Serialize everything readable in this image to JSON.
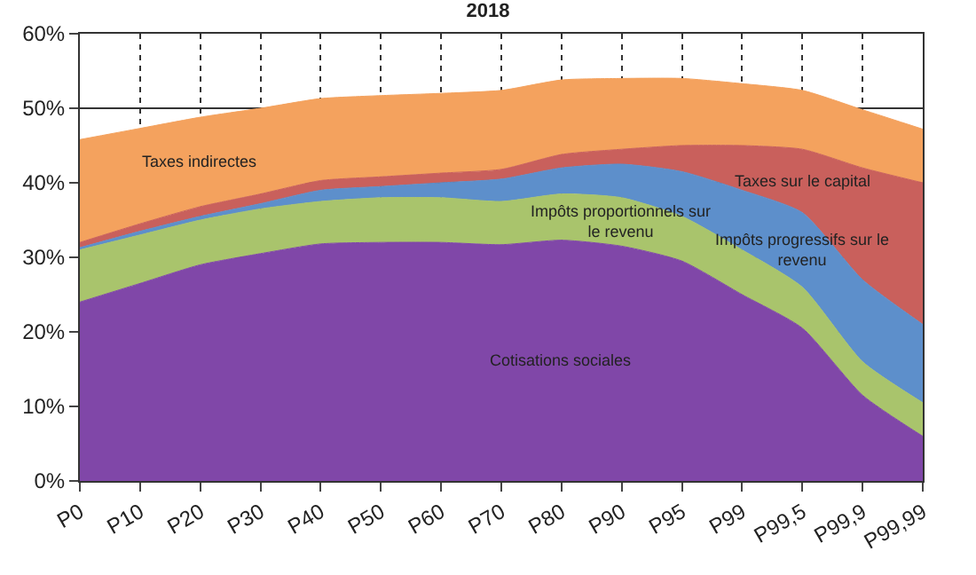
{
  "chart_data": {
    "type": "area",
    "title": "2018",
    "stacked": true,
    "categories": [
      "P0",
      "P10",
      "P20",
      "P30",
      "P40",
      "P50",
      "P60",
      "P70",
      "P80",
      "P90",
      "P95",
      "P99",
      "P99,5",
      "P99,9",
      "P99,99"
    ],
    "series": [
      {
        "name": "Cotisations sociales",
        "color": "#8047a8",
        "values": [
          24,
          26.5,
          29,
          30.5,
          31.8,
          32,
          32,
          31.7,
          32.3,
          31.5,
          29.5,
          25,
          20.5,
          11.5,
          6
        ]
      },
      {
        "name": "Impôts proportionnels sur le revenu",
        "color": "#a9c46c",
        "values": [
          7,
          6.5,
          6,
          6,
          5.7,
          6,
          6,
          5.8,
          6.2,
          6.5,
          6,
          6,
          5.5,
          4.5,
          4.5
        ]
      },
      {
        "name": "Impôts progressifs sur le revenu",
        "color": "#5d8fcb",
        "values": [
          0.3,
          0.5,
          0.5,
          0.7,
          1.5,
          1.5,
          2,
          3,
          3.5,
          4.5,
          6,
          8,
          10,
          11,
          10.5
        ]
      },
      {
        "name": "Taxes sur le capital",
        "color": "#c9605c",
        "values": [
          0.7,
          1,
          1.3,
          1.3,
          1.3,
          1.3,
          1.3,
          1.3,
          1.8,
          2,
          3.5,
          6,
          8.5,
          15,
          19
        ]
      },
      {
        "name": "Taxes indirectes",
        "color": "#f4a25e",
        "values": [
          13.8,
          12.8,
          12,
          11.5,
          11,
          10.9,
          10.7,
          10.6,
          10,
          9.5,
          9,
          8.3,
          7.9,
          7.8,
          7.2
        ]
      }
    ],
    "ylim": [
      0,
      60
    ],
    "yticks": [
      {
        "value": 0,
        "label": "0%"
      },
      {
        "value": 10,
        "label": "10%"
      },
      {
        "value": 20,
        "label": "20%"
      },
      {
        "value": 30,
        "label": "30%"
      },
      {
        "value": 40,
        "label": "40%"
      },
      {
        "value": 50,
        "label": "50%"
      },
      {
        "value": 60,
        "label": "60%"
      }
    ],
    "grid": true,
    "legend": false
  }
}
